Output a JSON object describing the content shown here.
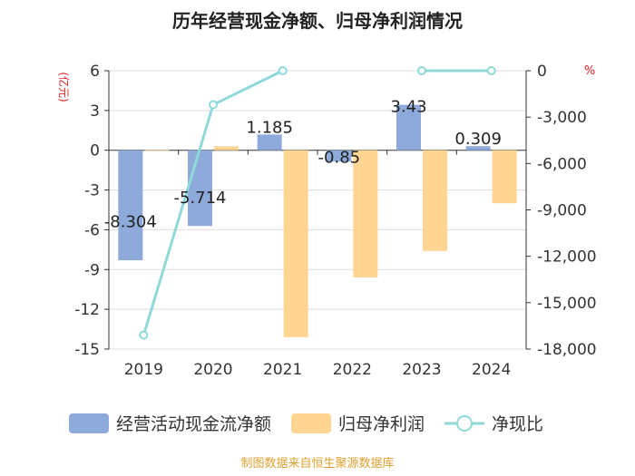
{
  "chart_data": {
    "type": "bar",
    "title": "历年经营现金净额、归母净利润情况",
    "left_unit": "(亿元)",
    "right_unit": "%",
    "categories": [
      "2019",
      "2020",
      "2021",
      "2022",
      "2023",
      "2024"
    ],
    "left_ylim": [
      -15,
      6
    ],
    "left_ticks": [
      "6",
      "3",
      "0",
      "-3",
      "-6",
      "-9",
      "-12",
      "-15"
    ],
    "right_ylim": [
      -18000,
      0
    ],
    "right_ticks": [
      "0",
      "-3,000",
      "-6,000",
      "-9,000",
      "-12,000",
      "-15,000",
      "-18,000"
    ],
    "series": [
      {
        "name": "经营活动现金流净额",
        "kind": "bar",
        "axis": "left",
        "color": "#8eaadb",
        "values": [
          -8.304,
          -5.714,
          1.185,
          -0.85,
          3.43,
          0.309
        ],
        "labels": [
          "-8.304",
          "-5.714",
          "1.185",
          "-0.85",
          "3.43",
          "0.309"
        ]
      },
      {
        "name": "归母净利润",
        "kind": "bar",
        "axis": "left",
        "color": "#ffd591",
        "values": [
          0.02,
          0.3,
          -14.1,
          -9.6,
          -7.6,
          -4.0
        ]
      },
      {
        "name": "净现比",
        "kind": "line",
        "axis": "right",
        "color": "#8fd9d9",
        "values": [
          -17100,
          -2200,
          0,
          null,
          0,
          0
        ]
      }
    ]
  },
  "colors": {
    "title": "#222222",
    "unit": "#e02020",
    "footer": "#e0a030",
    "grid": "#dddddd",
    "axis": "#333333"
  },
  "footer": "制图数据来自恒生聚源数据库"
}
